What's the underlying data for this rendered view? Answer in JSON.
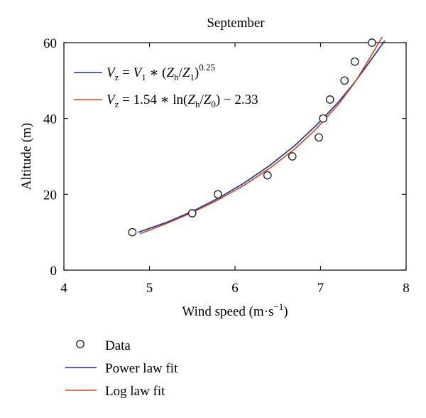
{
  "chart_data": {
    "type": "scatter",
    "title": "September",
    "xlabel": {
      "base": "Wind speed (m·s",
      "sup": "−1",
      "close": ")"
    },
    "ylabel": "Altitude (m)",
    "xlim": [
      4,
      8
    ],
    "ylim": [
      0,
      60
    ],
    "xticks": [
      "4",
      "5",
      "6",
      "7",
      "8"
    ],
    "yticks": [
      "0",
      "20",
      "40",
      "60"
    ],
    "grid": false,
    "equations": [
      {
        "name": "power",
        "parts": {
          "v": "V",
          "vsub": "z",
          "eq": " = ",
          "v1": "V",
          "v1sub": "1",
          "op": " ∗ (",
          "zh": "Z",
          "zhsub": "h",
          "slash": "/",
          "z1": "Z",
          "z1sub": "1",
          "close": ")",
          "exp": "0.25"
        }
      },
      {
        "name": "log",
        "parts": {
          "v": "V",
          "vsub": "z",
          "pre": " = 1.54 ∗ ln(",
          "zh": "Z",
          "zhsub": "h",
          "slash": "/",
          "z0": "Z",
          "z0sub": "0",
          "post": ") − 2.33"
        }
      }
    ],
    "series": [
      {
        "name": "Data",
        "kind": "scatter",
        "x": [
          4.8,
          5.5,
          5.8,
          6.38,
          6.67,
          6.98,
          7.03,
          7.11,
          7.28,
          7.4,
          7.6
        ],
        "y": [
          10,
          15,
          20,
          25,
          30,
          35,
          40,
          45,
          50,
          55,
          60
        ]
      },
      {
        "name": "Power law fit",
        "kind": "line",
        "color": "#1f2a8c",
        "x": [
          4.87,
          5.2,
          5.5,
          5.8,
          6.1,
          6.4,
          6.7,
          6.95,
          7.2,
          7.4,
          7.55,
          7.75
        ],
        "y": [
          10,
          12.6,
          15.5,
          18.9,
          22.9,
          27.5,
          32.9,
          38.2,
          44.1,
          49.6,
          54.2,
          60.5
        ]
      },
      {
        "name": "Log law fit",
        "kind": "line",
        "color": "#d2421c",
        "x": [
          4.89,
          5.2,
          5.5,
          5.8,
          6.1,
          6.4,
          6.7,
          6.95,
          7.2,
          7.4,
          7.55,
          7.72
        ],
        "y": [
          9.6,
          12.3,
          15.2,
          18.5,
          22.3,
          26.8,
          32.0,
          37.3,
          43.5,
          49.5,
          55.0,
          61.5
        ]
      }
    ],
    "legend_bottom": {
      "placement": "below",
      "entries": [
        "Data",
        "Power law fit",
        "Log law fit"
      ]
    }
  }
}
